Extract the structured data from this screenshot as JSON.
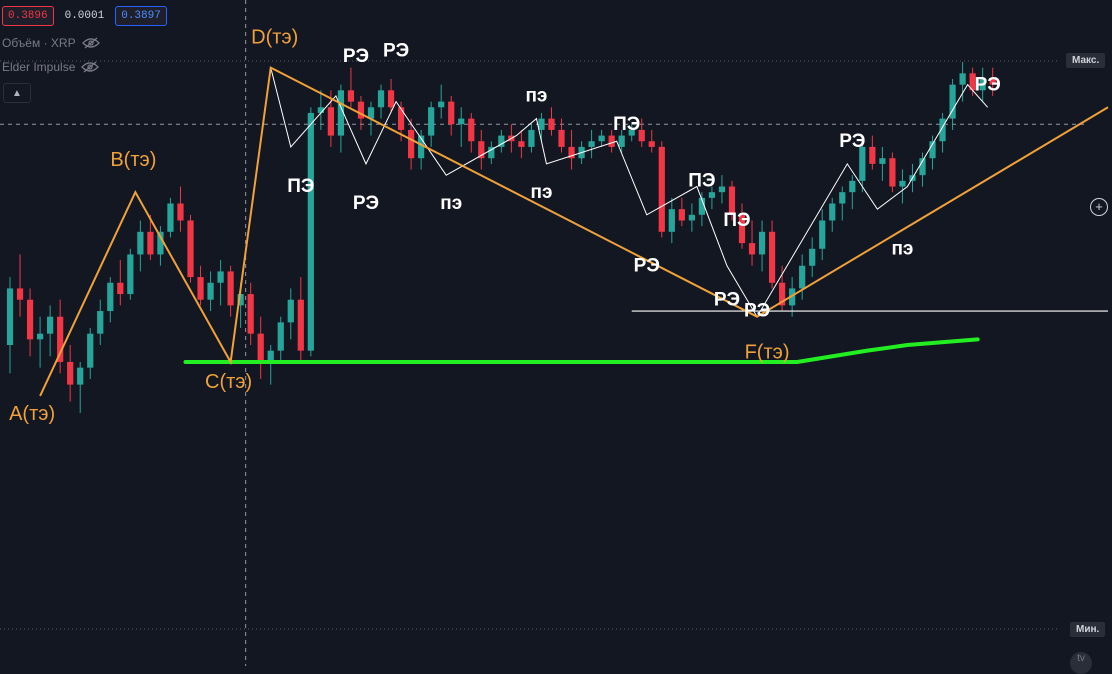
{
  "legend": {
    "price_bid": "0.3896",
    "spread": "0.0001",
    "price_ask": "0.3897",
    "volume_label": "Объём · XRP",
    "indicator_label": "Elder Impulse"
  },
  "price_scale": {
    "max_label": "Макс.",
    "min_label": "Мин."
  },
  "colors": {
    "background": "#131722",
    "bull": "#26a69a",
    "bear": "#f23645",
    "pattern": "#f0a13a",
    "wave": "#ffffff",
    "support": "#22ee22"
  },
  "icons": {
    "visibility": "eye-off-icon",
    "collapse": "chevron-up-icon",
    "add": "plus-icon"
  },
  "chart_data": {
    "type": "candlestick",
    "symbol": "XRP",
    "xlim": [
      0,
      110
    ],
    "ylim": [
      0,
      100
    ],
    "candles": [
      [
        0,
        50,
        62,
        45,
        60
      ],
      [
        1,
        60,
        66,
        55,
        58
      ],
      [
        2,
        58,
        60,
        48,
        51
      ],
      [
        3,
        51,
        55,
        46,
        52
      ],
      [
        4,
        52,
        57,
        48,
        55
      ],
      [
        5,
        55,
        58,
        45,
        47
      ],
      [
        6,
        47,
        50,
        40,
        43
      ],
      [
        7,
        43,
        47,
        38,
        46
      ],
      [
        8,
        46,
        53,
        44,
        52
      ],
      [
        9,
        52,
        58,
        50,
        56
      ],
      [
        10,
        56,
        62,
        54,
        61
      ],
      [
        11,
        61,
        65,
        57,
        59
      ],
      [
        12,
        59,
        67,
        58,
        66
      ],
      [
        13,
        66,
        72,
        63,
        70
      ],
      [
        14,
        70,
        73,
        65,
        66
      ],
      [
        15,
        66,
        71,
        64,
        70
      ],
      [
        16,
        70,
        76,
        69,
        75
      ],
      [
        17,
        75,
        78,
        70,
        72
      ],
      [
        18,
        72,
        73,
        61,
        62
      ],
      [
        19,
        62,
        64,
        57,
        58
      ],
      [
        20,
        58,
        63,
        56,
        61
      ],
      [
        21,
        61,
        65,
        57,
        63
      ],
      [
        22,
        63,
        64,
        55,
        57
      ],
      [
        23,
        57,
        61,
        53,
        59
      ],
      [
        24,
        59,
        61,
        50,
        52
      ],
      [
        25,
        52,
        55,
        44,
        47
      ],
      [
        26,
        47,
        50,
        43,
        49
      ],
      [
        27,
        49,
        55,
        47,
        54
      ],
      [
        28,
        54,
        60,
        51,
        58
      ],
      [
        29,
        58,
        62,
        47,
        49
      ],
      [
        30,
        49,
        92,
        48,
        91
      ],
      [
        31,
        91,
        95,
        88,
        92
      ],
      [
        32,
        92,
        95,
        85,
        87
      ],
      [
        33,
        87,
        96,
        84,
        95
      ],
      [
        34,
        95,
        99,
        92,
        93
      ],
      [
        35,
        93,
        94,
        88,
        90
      ],
      [
        36,
        90,
        93,
        87,
        92
      ],
      [
        37,
        92,
        96,
        90,
        95
      ],
      [
        38,
        95,
        97,
        91,
        92
      ],
      [
        39,
        92,
        93,
        86,
        88
      ],
      [
        40,
        88,
        90,
        81,
        83
      ],
      [
        41,
        83,
        88,
        81,
        87
      ],
      [
        42,
        87,
        93,
        85,
        92
      ],
      [
        43,
        92,
        96,
        90,
        93
      ],
      [
        44,
        93,
        94,
        87,
        89
      ],
      [
        45,
        89,
        92,
        85,
        90
      ],
      [
        46,
        90,
        91,
        84,
        86
      ],
      [
        47,
        86,
        88,
        81,
        83
      ],
      [
        48,
        83,
        86,
        82,
        85
      ],
      [
        49,
        85,
        88,
        84,
        87
      ],
      [
        50,
        87,
        89,
        84,
        86
      ],
      [
        51,
        86,
        88,
        83,
        85
      ],
      [
        52,
        85,
        89,
        84,
        88
      ],
      [
        53,
        88,
        91,
        86,
        90
      ],
      [
        54,
        90,
        92,
        87,
        88
      ],
      [
        55,
        88,
        90,
        84,
        85
      ],
      [
        56,
        85,
        88,
        81,
        83
      ],
      [
        57,
        83,
        86,
        82,
        85
      ],
      [
        58,
        85,
        88,
        83,
        86
      ],
      [
        59,
        86,
        88,
        85,
        87
      ],
      [
        60,
        87,
        88,
        84,
        85
      ],
      [
        61,
        85,
        88,
        84,
        87
      ],
      [
        62,
        87,
        89,
        86,
        88
      ],
      [
        63,
        88,
        90,
        85,
        86
      ],
      [
        64,
        86,
        88,
        84,
        85
      ],
      [
        65,
        85,
        86,
        69,
        70
      ],
      [
        66,
        70,
        76,
        68,
        74
      ],
      [
        67,
        74,
        76,
        71,
        72
      ],
      [
        68,
        72,
        75,
        70,
        73
      ],
      [
        69,
        73,
        77,
        71,
        76
      ],
      [
        70,
        76,
        78,
        74,
        77
      ],
      [
        71,
        77,
        80,
        75,
        78
      ],
      [
        72,
        78,
        79,
        72,
        73
      ],
      [
        73,
        73,
        75,
        67,
        68
      ],
      [
        74,
        68,
        72,
        64,
        66
      ],
      [
        75,
        66,
        72,
        63,
        70
      ],
      [
        76,
        70,
        72,
        60,
        61
      ],
      [
        77,
        61,
        64,
        56,
        57
      ],
      [
        78,
        57,
        62,
        55,
        60
      ],
      [
        79,
        60,
        66,
        58,
        64
      ],
      [
        80,
        64,
        69,
        62,
        67
      ],
      [
        81,
        67,
        74,
        65,
        72
      ],
      [
        82,
        72,
        76,
        70,
        75
      ],
      [
        83,
        75,
        78,
        72,
        77
      ],
      [
        84,
        77,
        80,
        74,
        79
      ],
      [
        85,
        79,
        86,
        77,
        85
      ],
      [
        86,
        85,
        87,
        81,
        82
      ],
      [
        87,
        82,
        85,
        79,
        83
      ],
      [
        88,
        83,
        84,
        77,
        78
      ],
      [
        89,
        78,
        81,
        75,
        79
      ],
      [
        90,
        79,
        82,
        77,
        80
      ],
      [
        91,
        80,
        84,
        78,
        83
      ],
      [
        92,
        83,
        87,
        81,
        86
      ],
      [
        93,
        86,
        91,
        84,
        90
      ],
      [
        94,
        90,
        97,
        88,
        96
      ],
      [
        95,
        96,
        100,
        93,
        98
      ],
      [
        96,
        98,
        99,
        94,
        95
      ],
      [
        97,
        95,
        99,
        93,
        97
      ],
      [
        98,
        97,
        99,
        94,
        96
      ]
    ],
    "pattern_points": [
      {
        "name": "A",
        "label": "A(тэ)",
        "x": 3.5,
        "y": 41
      },
      {
        "name": "B",
        "label": "B(тэ)",
        "x": 13,
        "y": 77
      },
      {
        "name": "C",
        "label": "C(тэ)",
        "x": 22.5,
        "y": 47
      },
      {
        "name": "D",
        "label": "D(тэ)",
        "x": 26.5,
        "y": 99
      },
      {
        "name": "F",
        "label": "F(тэ)",
        "x": 75,
        "y": 55
      }
    ],
    "pattern_line": [
      [
        3.5,
        41
      ],
      [
        13,
        77
      ],
      [
        22.5,
        47
      ],
      [
        26.5,
        99
      ],
      [
        75,
        55
      ],
      [
        110,
        92
      ]
    ],
    "wave_line": [
      [
        26.5,
        99
      ],
      [
        28.5,
        85
      ],
      [
        33,
        94
      ],
      [
        36,
        82
      ],
      [
        39,
        93
      ],
      [
        44,
        80
      ],
      [
        51,
        87
      ],
      [
        53,
        90
      ],
      [
        54,
        82
      ],
      [
        61,
        86
      ],
      [
        64,
        73
      ],
      [
        69,
        78
      ],
      [
        72,
        64
      ],
      [
        75,
        55
      ],
      [
        84,
        82
      ],
      [
        87,
        74
      ],
      [
        90,
        78
      ],
      [
        96,
        96
      ],
      [
        98,
        92
      ]
    ],
    "support_line": [
      [
        18,
        47
      ],
      [
        58,
        47
      ],
      [
        79,
        47
      ],
      [
        86,
        49
      ],
      [
        90,
        50
      ],
      [
        97,
        51
      ]
    ],
    "horizontal_level": {
      "y": 56,
      "x_from": 62.5,
      "x_to": 110
    },
    "cursor_crosshair": {
      "x": 24,
      "y": 89
    },
    "annotations": [
      {
        "text": "РЭ",
        "x": 35,
        "y": 100
      },
      {
        "text": "РЭ",
        "x": 39,
        "y": 101
      },
      {
        "text": "ПЭ",
        "x": 29.5,
        "y": 77
      },
      {
        "text": "РЭ",
        "x": 36,
        "y": 74
      },
      {
        "text": "пэ",
        "x": 44.5,
        "y": 74
      },
      {
        "text": "пэ",
        "x": 53,
        "y": 93
      },
      {
        "text": "пэ",
        "x": 53.5,
        "y": 76
      },
      {
        "text": "ПЭ",
        "x": 62,
        "y": 88
      },
      {
        "text": "ПЭ",
        "x": 69.5,
        "y": 78
      },
      {
        "text": "ПЭ",
        "x": 73,
        "y": 71
      },
      {
        "text": "РЭ",
        "x": 64,
        "y": 63
      },
      {
        "text": "РЭ",
        "x": 72,
        "y": 57
      },
      {
        "text": "РЭ",
        "x": 75,
        "y": 55
      },
      {
        "text": "РЭ",
        "x": 84.5,
        "y": 85
      },
      {
        "text": "пэ",
        "x": 89.5,
        "y": 66
      },
      {
        "text": "РЭ",
        "x": 98,
        "y": 95
      }
    ]
  }
}
